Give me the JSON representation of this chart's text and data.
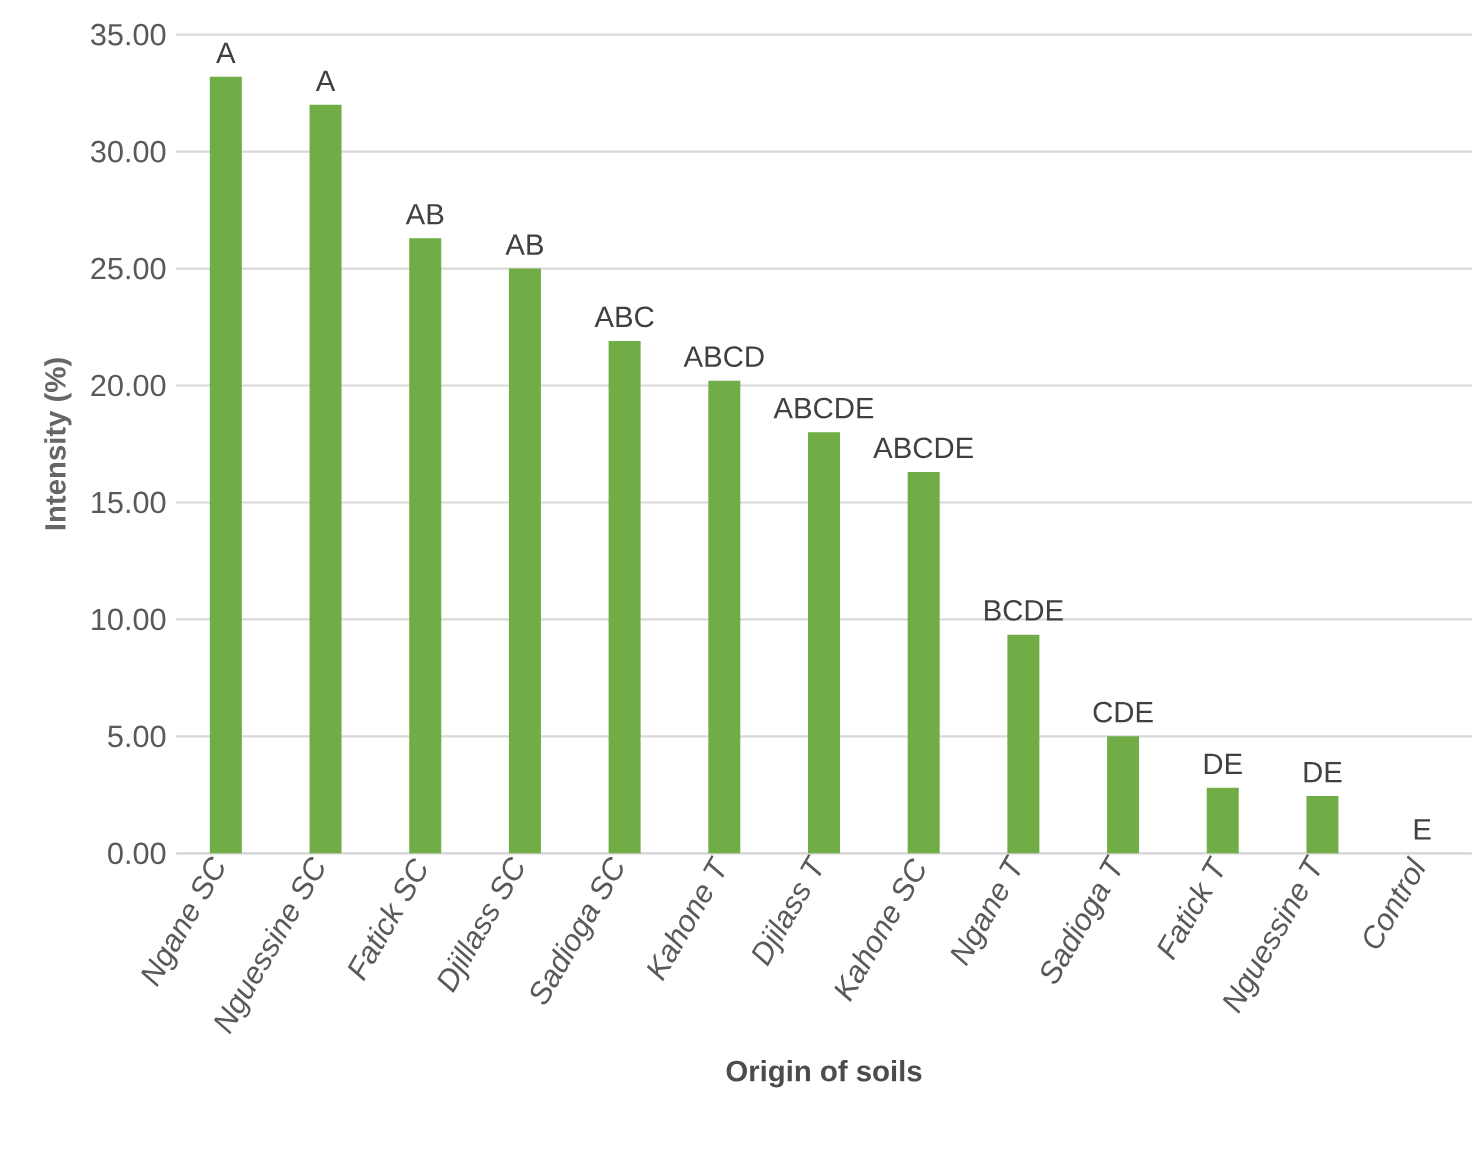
{
  "chart_data": {
    "type": "bar",
    "xlabel": "Origin of soils",
    "ylabel": "Intensity (%)",
    "categories": [
      "Ngane SC",
      "Nguessine SC",
      "Fatick SC",
      "Djillass SC",
      "Sadioga SC",
      "Kahone T",
      "Djilass T",
      "Kahone SC",
      "Ngane T",
      "Sadioga T",
      "Fatick T",
      "Nguessine T",
      "Control"
    ],
    "values": [
      33.2,
      32.0,
      26.3,
      25.0,
      21.9,
      20.2,
      18.0,
      16.3,
      9.35,
      5.0,
      2.8,
      2.45,
      0
    ],
    "value_labels": [
      "A",
      "A",
      "AB",
      "AB",
      "ABC",
      "ABCD",
      "ABCDE",
      "ABCDE",
      "BCDE",
      "CDE",
      "DE",
      "DE",
      "E"
    ],
    "color": "#70ad47",
    "ylim": [
      0,
      35
    ],
    "yticks": [
      {
        "value": 0,
        "label": "0.00"
      },
      {
        "value": 5,
        "label": "5.00"
      },
      {
        "value": 10,
        "label": "10.00"
      },
      {
        "value": 15,
        "label": "15.00"
      },
      {
        "value": 20,
        "label": "20.00"
      },
      {
        "value": 25,
        "label": "25.00"
      },
      {
        "value": 30,
        "label": "30.00"
      },
      {
        "value": 35,
        "label": "35.00"
      }
    ],
    "grid": "y"
  }
}
